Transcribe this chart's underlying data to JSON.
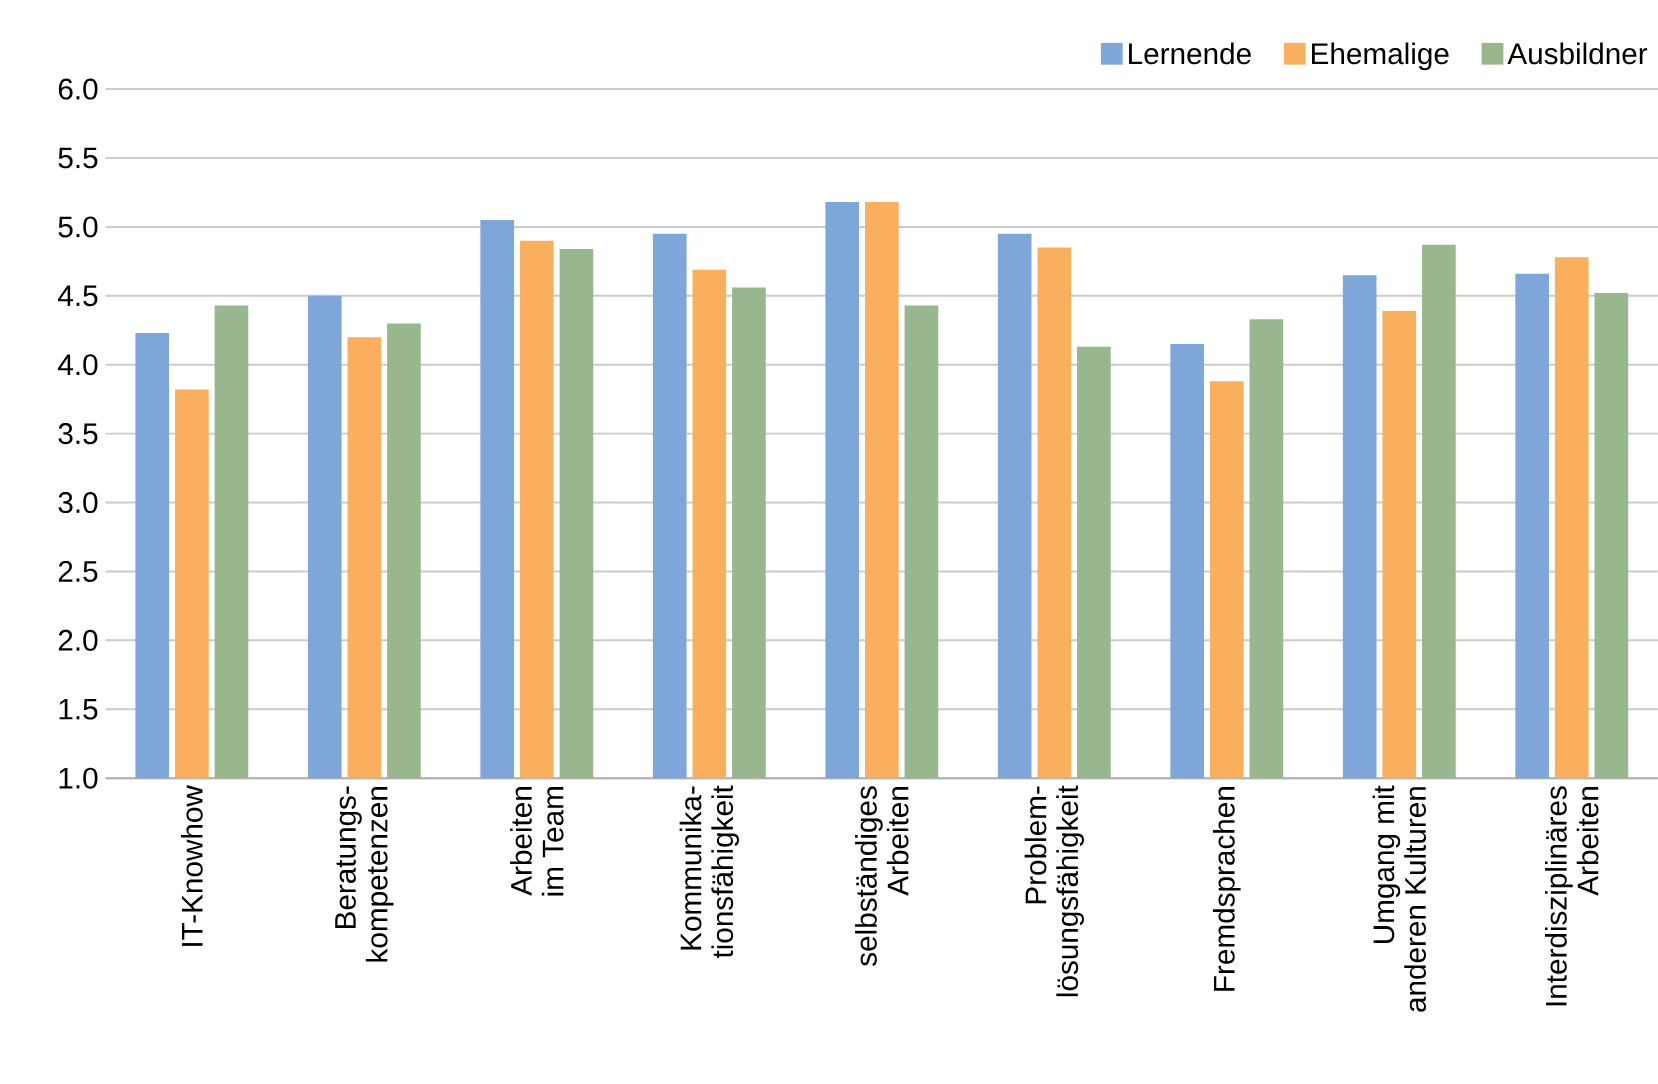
{
  "chart_data": {
    "type": "bar",
    "categories": [
      "IT-Knowhow",
      "Beratungs-\nkompetenzen",
      "Arbeiten\nim Team",
      "Kommunika-\ntionsfähigkeit",
      "selbständiges\nArbeiten",
      "Problem-\nlösungsfähigkeit",
      "Fremdsprachen",
      "Umgang mit\nanderen Kulturen",
      "Interdisziplinäres\nArbeiten"
    ],
    "series": [
      {
        "name": "Lernende",
        "color": "#7ea6d8",
        "values": [
          4.23,
          4.5,
          5.05,
          4.95,
          5.18,
          4.95,
          4.15,
          4.65,
          4.66
        ]
      },
      {
        "name": "Ehemalige",
        "color": "#f9af5e",
        "values": [
          3.82,
          4.2,
          4.9,
          4.69,
          5.18,
          4.85,
          3.88,
          4.39,
          4.78
        ]
      },
      {
        "name": "Ausbildner",
        "color": "#98b78f",
        "values": [
          4.43,
          4.3,
          4.84,
          4.56,
          4.43,
          4.13,
          4.33,
          4.87,
          4.52
        ]
      }
    ],
    "ylim": [
      1.0,
      6.0
    ],
    "yticks": [
      {
        "value": 1,
        "label": "1.0"
      },
      {
        "value": 1.5,
        "label": "1.5"
      },
      {
        "value": 2,
        "label": "2.0"
      },
      {
        "value": 2.5,
        "label": "2.5"
      },
      {
        "value": 3,
        "label": "3.0"
      },
      {
        "value": 3.5,
        "label": "3.5"
      },
      {
        "value": 4,
        "label": "4.0"
      },
      {
        "value": 4.5,
        "label": "4.5"
      },
      {
        "value": 5,
        "label": "5.0"
      },
      {
        "value": 5.5,
        "label": "5.5"
      },
      {
        "value": 6,
        "label": "6.0"
      }
    ],
    "grid": "y",
    "legend": "top right"
  }
}
